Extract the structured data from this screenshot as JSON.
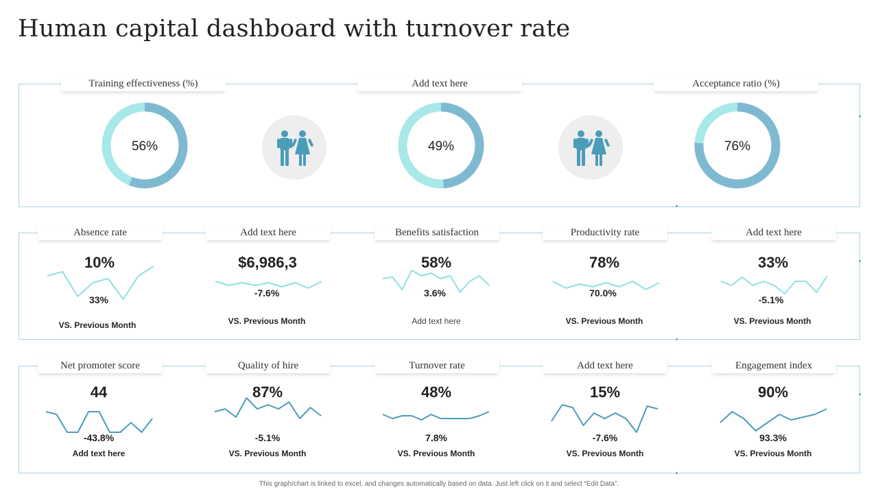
{
  "page": {
    "title": "Human capital dashboard with turnover rate"
  },
  "footnote": "This graph/chart is linked to excel, and changes automatically based on data. Just left click on it and select “Edit Data”.",
  "colors": {
    "dark": "#7fb9d1",
    "light": "#a8e8e8",
    "spark_light": "#8fe0e0",
    "spark_dark": "#4a9cb9",
    "panel_border": "#a9d4dd",
    "icon": "#4a9cb9"
  },
  "icons": {
    "people": "people-icon"
  },
  "top_row": [
    {
      "label": "Training effectiveness (%)",
      "value_text": "56%",
      "value": 56,
      "primary": "dark"
    },
    {
      "label": "Add text here",
      "value_text": "49%",
      "value": 49,
      "primary": "dark"
    },
    {
      "label": "Acceptance ratio (%)",
      "value_text": "76%",
      "value": 76,
      "primary": "dark"
    }
  ],
  "row2": [
    {
      "label": "Absence rate",
      "value": "10%",
      "change": "33%",
      "caption": "VS. Previous Month"
    },
    {
      "label": "Add text here",
      "value": "$6,986,3",
      "change": "-7.6%",
      "caption": "VS. Previous Month"
    },
    {
      "label": "Benefits satisfaction",
      "value": "58%",
      "change": "3.6%",
      "caption": "Add  text here"
    },
    {
      "label": "Productivity rate",
      "value": "78%",
      "change": "70.0%",
      "caption": "VS. Previous Month"
    },
    {
      "label": "Add text here",
      "value": "33%",
      "change": "-5.1%",
      "caption": "VS. Previous Month"
    }
  ],
  "row3": [
    {
      "label": "Net promoter score",
      "value": "44",
      "change": "-43.8%",
      "caption": "Add  text here"
    },
    {
      "label": "Quality of hire",
      "value": "87%",
      "change": "-5.1%",
      "caption": "VS. Previous Month"
    },
    {
      "label": "Turnover rate",
      "value": "48%",
      "change": "7.8%",
      "caption": "VS. Previous Month"
    },
    {
      "label": "Add text here",
      "value": "15%",
      "change": "-7.6%",
      "caption": "VS. Previous Month"
    },
    {
      "label": "Engagement index",
      "value": "90%",
      "change": "93.3%",
      "caption": "VS. Previous Month"
    }
  ],
  "chart_data": [
    {
      "type": "pie",
      "title": "Training effectiveness (%)",
      "values": [
        56,
        44
      ]
    },
    {
      "type": "pie",
      "title": "Add text here",
      "values": [
        49,
        51
      ]
    },
    {
      "type": "pie",
      "title": "Acceptance ratio (%)",
      "values": [
        76,
        24
      ]
    },
    {
      "type": "line",
      "title": "Absence rate",
      "values": [
        60,
        63,
        45,
        55,
        58,
        43,
        60,
        67
      ]
    },
    {
      "type": "line",
      "title": "Add text here",
      "values": [
        56,
        53,
        55,
        53,
        55,
        52,
        55,
        51,
        56
      ]
    },
    {
      "type": "line",
      "title": "Benefits satisfaction",
      "values": [
        58,
        59,
        50,
        64,
        60,
        62,
        58,
        60,
        48,
        56,
        60,
        53
      ]
    },
    {
      "type": "line",
      "title": "Productivity rate",
      "values": [
        56,
        51,
        54,
        52,
        55,
        52,
        56,
        50,
        55
      ]
    },
    {
      "type": "line",
      "title": "Add text here",
      "values": [
        56,
        53,
        59,
        53,
        56,
        53,
        47,
        56,
        56,
        48,
        60
      ]
    },
    {
      "type": "line",
      "title": "Net promoter score",
      "values": [
        58,
        56,
        43,
        43,
        58,
        58,
        43,
        43,
        50,
        43,
        53
      ]
    },
    {
      "type": "line",
      "title": "Quality of hire",
      "values": [
        58,
        60,
        54,
        68,
        60,
        63,
        60,
        65,
        53,
        61,
        55
      ]
    },
    {
      "type": "line",
      "title": "Turnover rate",
      "values": [
        56,
        53,
        55,
        55,
        52,
        56,
        53,
        53,
        53,
        53,
        55,
        58
      ]
    },
    {
      "type": "line",
      "title": "Add text here",
      "values": [
        51,
        63,
        61,
        48,
        57,
        53,
        57,
        53,
        43,
        62,
        60
      ]
    },
    {
      "type": "line",
      "title": "Engagement index",
      "values": [
        50,
        58,
        53,
        44,
        50,
        56,
        52,
        54,
        56,
        60
      ]
    }
  ]
}
